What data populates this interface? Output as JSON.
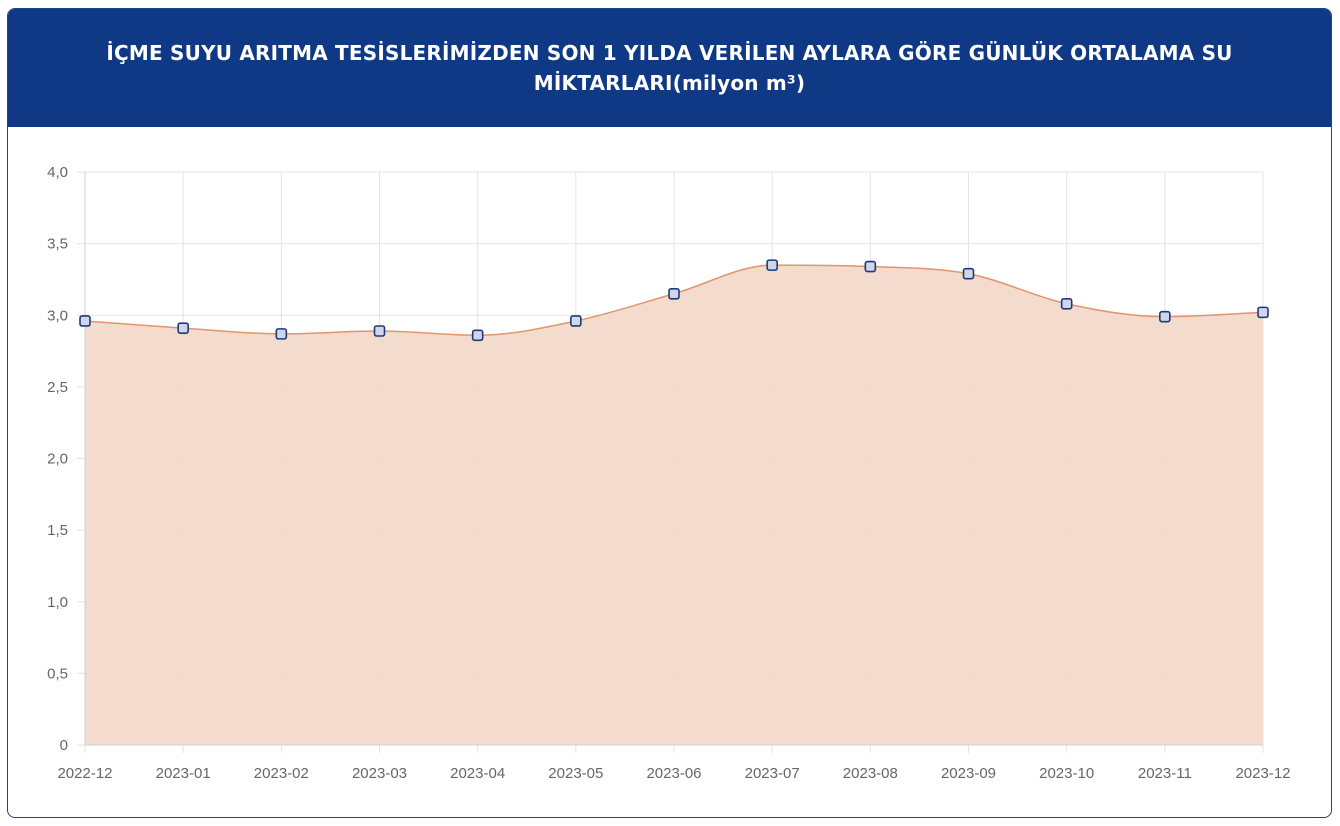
{
  "header": {
    "title": "İÇME SUYU ARITMA TESİSLERİMİZDEN SON 1 YILDA VERİLEN AYLARA GÖRE GÜNLÜK ORTALAMA SU MİKTARLARI(milyon m³)"
  },
  "chart_data": {
    "type": "area",
    "title": "İÇME SUYU ARITMA TESİSLERİMİZDEN SON 1 YILDA VERİLEN AYLARA GÖRE GÜNLÜK ORTALAMA SU MİKTARLARI(milyon m³)",
    "categories": [
      "2022-12",
      "2023-01",
      "2023-02",
      "2023-03",
      "2023-04",
      "2023-05",
      "2023-06",
      "2023-07",
      "2023-08",
      "2023-09",
      "2023-10",
      "2023-11",
      "2023-12"
    ],
    "series": [
      {
        "values": [
          2.96,
          2.91,
          2.87,
          2.89,
          2.86,
          2.96,
          3.15,
          3.35,
          3.34,
          3.29,
          3.08,
          2.99,
          3.02
        ]
      }
    ],
    "ylim": [
      0,
      4
    ],
    "yticks": [
      0,
      0.5,
      1,
      1.5,
      2,
      2.5,
      3,
      3.5,
      4
    ],
    "ytick_labels": [
      "0",
      "0,5",
      "1,0",
      "1,5",
      "2,0",
      "2,5",
      "3,0",
      "3,5",
      "4,0"
    ],
    "grid": true,
    "colors": {
      "line": "#e2956a",
      "fill": "#f2d8c9",
      "marker_stroke": "#1f3a7a",
      "marker_fill": "#cfd6ea",
      "header_bg": "#0f3985"
    }
  }
}
